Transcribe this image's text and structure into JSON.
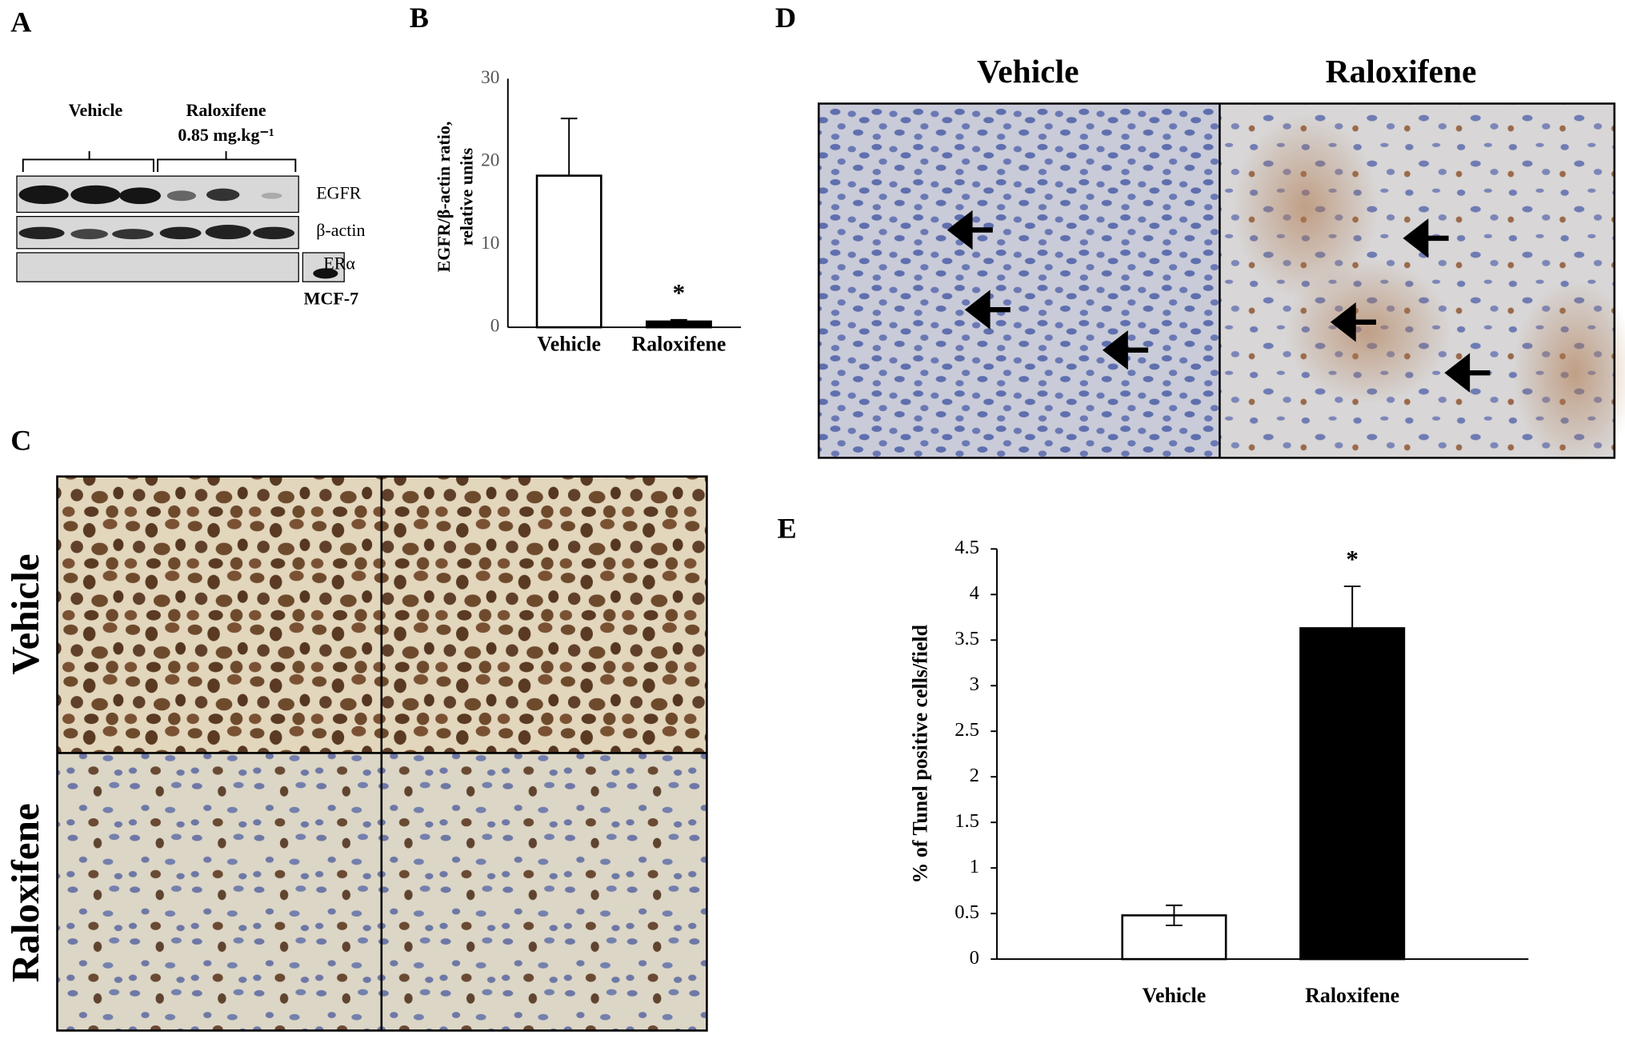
{
  "panel_a": {
    "label": "A",
    "groups": [
      "Vehicle",
      "Raloxifene"
    ],
    "dose": "0.85 mg.kg⁻¹",
    "bands": [
      "EGFR",
      "β-actin",
      "ERα"
    ],
    "control": "MCF-7"
  },
  "panel_c": {
    "label": "C",
    "rows": [
      "Vehicle",
      "Raloxifene"
    ]
  },
  "panel_d": {
    "label": "D",
    "columns": [
      "Vehicle",
      "Raloxifene"
    ]
  },
  "chart_data": [
    {
      "type": "bar",
      "panel_label": "B",
      "categories": [
        "Vehicle",
        "Raloxifene"
      ],
      "values": [
        18.3,
        0.7
      ],
      "errors": [
        6.9,
        0.2
      ],
      "error_direction": "up",
      "colors": [
        "#ffffff",
        "#000000"
      ],
      "ylabel": [
        "EGFR/β-actin ratio,",
        "relative units"
      ],
      "ylim": [
        0,
        30
      ],
      "yticks": [
        0,
        10,
        20,
        30
      ],
      "annotation": "*"
    },
    {
      "type": "bar",
      "panel_label": "E",
      "categories": [
        "Vehicle",
        "Raloxifene"
      ],
      "values": [
        0.48,
        3.63
      ],
      "errors": [
        0.11,
        0.46
      ],
      "error_direction": "both",
      "colors": [
        "#ffffff",
        "#000000"
      ],
      "ylabel": [
        "% of Tunel positive cells/field"
      ],
      "ylim": [
        0,
        4.5
      ],
      "yticks": [
        0,
        0.5,
        1,
        1.5,
        2,
        2.5,
        3,
        3.5,
        4,
        4.5
      ],
      "annotation": "*"
    }
  ]
}
